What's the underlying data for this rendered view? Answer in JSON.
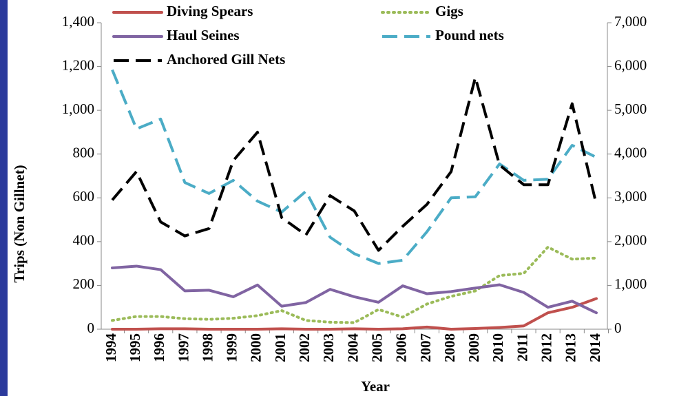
{
  "chart_data": {
    "type": "line",
    "x_label": "Year",
    "y_label": "Trips  (Non Gillnet)",
    "categories": [
      "1994",
      "1995",
      "1996",
      "1997",
      "1998",
      "1999",
      "2000",
      "2001",
      "2002",
      "2003",
      "2004",
      "2005",
      "2006",
      "2007",
      "2008",
      "2009",
      "2010",
      "2011",
      "2012",
      "2013",
      "2014"
    ],
    "ylim": [
      0,
      1400
    ],
    "yticks": [
      0,
      200,
      400,
      600,
      800,
      {
        "value": 1000,
        "label": "1,000"
      },
      {
        "value": 1200,
        "label": "1,200"
      },
      {
        "value": 1400,
        "label": "1,400"
      }
    ],
    "y2lim": [
      0,
      7000
    ],
    "y2ticks": [
      0,
      {
        "value": 1000,
        "label": "1,000"
      },
      {
        "value": 2000,
        "label": "2,000"
      },
      {
        "value": 3000,
        "label": "3,000"
      },
      {
        "value": 4000,
        "label": "4,000"
      },
      {
        "value": 5000,
        "label": "5,000"
      },
      {
        "value": 6000,
        "label": "6,000"
      },
      {
        "value": 7000,
        "label": "7,000"
      }
    ],
    "series": [
      {
        "name": "Diving Spears",
        "color": "#c0504d",
        "style": "solid",
        "values": [
          0,
          0,
          2,
          2,
          0,
          0,
          0,
          2,
          0,
          0,
          2,
          0,
          2,
          10,
          0,
          3,
          8,
          15,
          75,
          100,
          140
        ]
      },
      {
        "name": "Gigs",
        "color": "#9bbb59",
        "style": "dotted",
        "values": [
          40,
          58,
          58,
          48,
          45,
          50,
          62,
          85,
          40,
          32,
          30,
          90,
          55,
          115,
          150,
          175,
          245,
          255,
          375,
          320,
          325
        ]
      },
      {
        "name": "Haul Seines",
        "color": "#8064a2",
        "style": "solid",
        "values": [
          280,
          288,
          272,
          175,
          178,
          148,
          202,
          105,
          122,
          182,
          148,
          123,
          198,
          162,
          172,
          188,
          203,
          168,
          100,
          128,
          75
        ]
      },
      {
        "name": "Pound nets",
        "color": "#4bacc6",
        "style": "dashed",
        "values": [
          1185,
          915,
          960,
          670,
          620,
          680,
          585,
          535,
          630,
          420,
          345,
          300,
          315,
          445,
          600,
          605,
          755,
          680,
          685,
          840,
          785
        ]
      },
      {
        "name": "Anchored Gill Nets",
        "color": "#000000",
        "style": "dashed",
        "axis": "y2",
        "values": [
          2950,
          3600,
          2450,
          2130,
          2300,
          3850,
          4500,
          2550,
          2150,
          3050,
          2700,
          1800,
          2350,
          2850,
          3600,
          5750,
          3750,
          3300,
          3300,
          5150,
          2850
        ]
      }
    ]
  }
}
